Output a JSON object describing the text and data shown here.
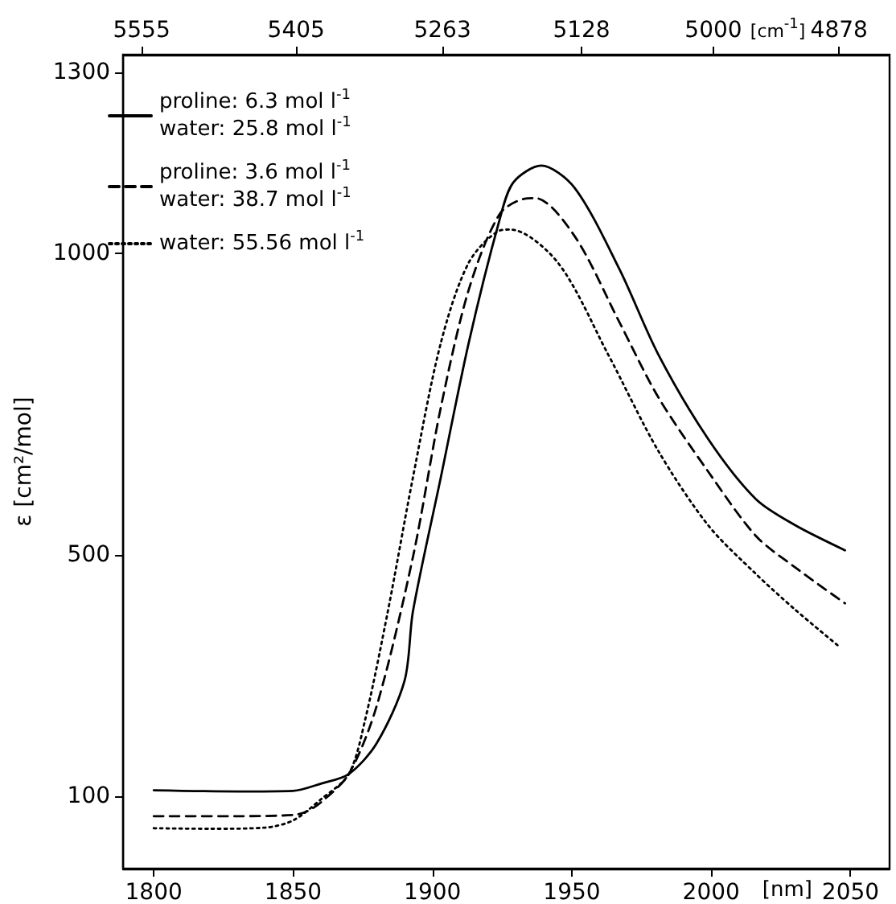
{
  "chart_data": {
    "type": "line",
    "xlabel": "[nm]",
    "ylabel": "ε [cm²/mol]",
    "x2label": "[cm$^{-1}$]",
    "xlim": [
      1789,
      2064
    ],
    "xticks": [
      1800,
      1850,
      1900,
      1950,
      2000,
      2050
    ],
    "x2lim": [
      5573,
      4829
    ],
    "x2ticks": [
      5555,
      5405,
      5263,
      5128,
      5000,
      4878
    ],
    "ylim": [
      -20,
      1330
    ],
    "yticks": [
      100,
      500,
      1000,
      1300
    ],
    "grid": false,
    "legend": "top left",
    "marker": "none",
    "series": [
      {
        "name": "proline: 6.3 mol l$^{-1}$\nwater: 25.8 mol l$^{-1}$",
        "color": "#000000",
        "line_style": "solid",
        "x": [
          1800,
          1830,
          1850,
          1860,
          1870,
          1880,
          1890,
          1893,
          1903,
          1913,
          1924,
          1929,
          1939,
          1951,
          1967,
          1981,
          1999,
          2016,
          2030,
          2048
        ],
        "values": [
          110,
          108,
          109,
          121,
          137,
          188,
          292,
          407,
          629,
          852,
          1055,
          1118,
          1146,
          1109,
          975,
          833,
          692,
          593,
          550,
          508
        ]
      },
      {
        "name": "proline: 3.6 mol l$^{-1}$\nwater: 38.7 mol l$^{-1}$",
        "color": "#000000",
        "line_style": "dashed",
        "x": [
          1800,
          1830,
          1850,
          1855,
          1860,
          1870,
          1880,
          1893,
          1903,
          1913,
          1924,
          1933,
          1937,
          1951,
          1967,
          1981,
          1999,
          2016,
          2030,
          2048
        ],
        "values": [
          67,
          67,
          69,
          75,
          90,
          137,
          250,
          497,
          745,
          940,
          1065,
          1091,
          1092,
          1029,
          887,
          762,
          638,
          532,
          480,
          420
        ]
      },
      {
        "name": "water: 55.56 mol l$^{-1}$",
        "color": "#000000",
        "line_style": "dotted",
        "x": [
          1800,
          1820,
          1840,
          1850,
          1860,
          1870,
          1876,
          1884,
          1893,
          1903,
          1913,
          1924,
          1928,
          1945,
          1963,
          1981,
          1999,
          2016,
          2030,
          2046
        ],
        "values": [
          47,
          46,
          48,
          60,
          95,
          137,
          230,
          407,
          629,
          852,
          985,
          1038,
          1040,
          985,
          833,
          673,
          549,
          469,
          410,
          348
        ]
      }
    ]
  }
}
